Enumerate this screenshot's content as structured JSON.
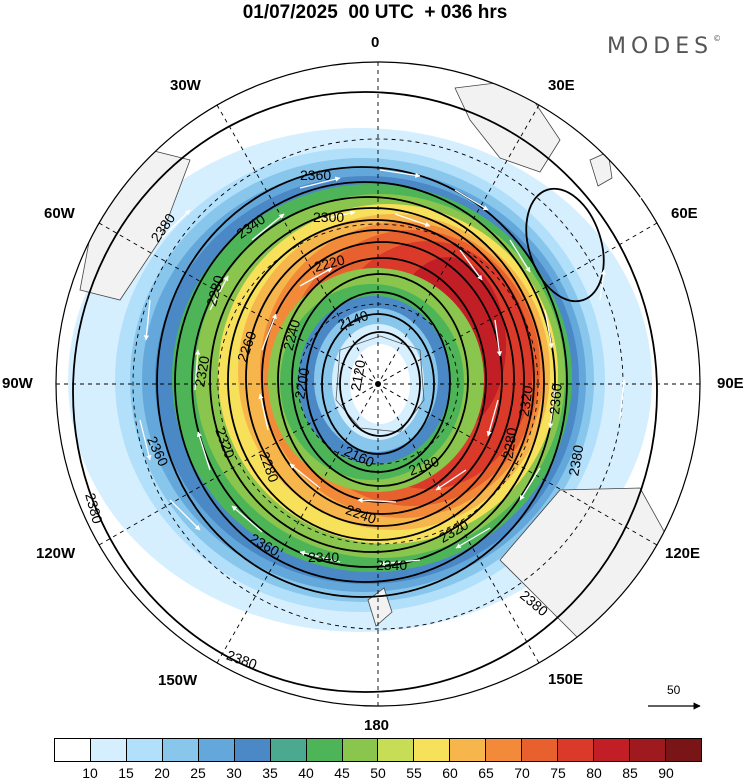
{
  "header": {
    "title": "01/07/2025  00 UTC  + 036 hrs",
    "brand": "MODES"
  },
  "map": {
    "projection": "south-polar-stereographic",
    "longitude_labels": {
      "lon_0": "0",
      "lon_30e": "30E",
      "lon_60e": "60E",
      "lon_90e": "90E",
      "lon_120e": "120E",
      "lon_150e": "150E",
      "lon_180": "180",
      "lon_150w": "150W",
      "lon_120w": "120W",
      "lon_90w": "90W",
      "lon_60w": "60W",
      "lon_30w": "30W"
    },
    "contour_labels": [
      "2380",
      "2360",
      "2340",
      "2300",
      "2280",
      "2260",
      "2240",
      "2220",
      "2200",
      "2180",
      "2160",
      "2140",
      "2120",
      "2320"
    ],
    "reference_vector_label": "50"
  },
  "colorbar": {
    "ticks": [
      "10",
      "15",
      "20",
      "25",
      "30",
      "35",
      "40",
      "45",
      "50",
      "55",
      "60",
      "65",
      "70",
      "75",
      "80",
      "85",
      "90"
    ],
    "colors": [
      "#ffffff",
      "#d6efff",
      "#b2e0fb",
      "#88c6ec",
      "#63a7db",
      "#4a89c6",
      "#4aa98e",
      "#4db557",
      "#8ac64e",
      "#c6dd55",
      "#f7e05a",
      "#f6b64c",
      "#f28a39",
      "#e8602e",
      "#db3a2b",
      "#c11f25",
      "#9e1a1e",
      "#7a1517"
    ]
  }
}
